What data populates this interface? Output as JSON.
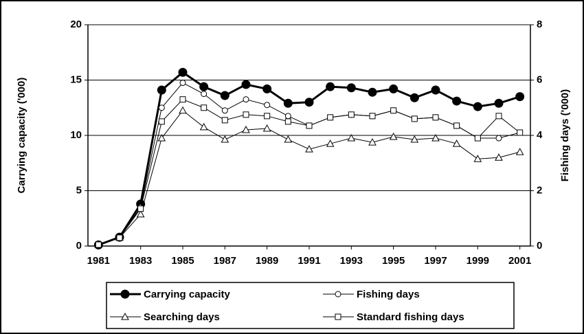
{
  "chart_data": {
    "type": "line",
    "y_label": "Carrying capacity ('000)",
    "y2_label": "Fishing days ('000)",
    "x": [
      1981,
      1982,
      1983,
      1984,
      1985,
      1986,
      1987,
      1988,
      1989,
      1990,
      1991,
      1992,
      1993,
      1994,
      1995,
      1996,
      1997,
      1998,
      1999,
      2000,
      2001
    ],
    "xlim": [
      1980.5,
      2001.5
    ],
    "xticks": [
      1981,
      1983,
      1985,
      1987,
      1989,
      1991,
      1993,
      1995,
      1997,
      1999,
      2001
    ],
    "ylim": [
      0,
      20
    ],
    "yticks": [
      0,
      5,
      10,
      15,
      20
    ],
    "y2lim": [
      0,
      8
    ],
    "y2ticks": [
      0,
      2,
      4,
      6,
      8
    ],
    "grid": true,
    "legend": "bottom",
    "series": [
      {
        "name": "Carrying capacity",
        "color": "#000000",
        "marker": "circle-filled",
        "line_width": 3,
        "values": [
          0.1,
          0.8,
          3.8,
          14.1,
          15.7,
          14.4,
          13.6,
          14.6,
          14.2,
          12.9,
          13.0,
          14.4,
          14.3,
          13.9,
          14.2,
          13.4,
          14.1,
          13.1,
          12.6,
          12.9,
          13.5
        ]
      },
      {
        "name": "Fishing days",
        "color": "#000000",
        "marker": "circle",
        "line_width": 1,
        "axis": "y2",
        "values": [
          0.05,
          0.3,
          1.4,
          5.0,
          5.9,
          5.5,
          4.9,
          5.3,
          5.1,
          4.7,
          4.35,
          4.65,
          4.75,
          4.7,
          4.9,
          4.6,
          4.65,
          4.35,
          3.9,
          3.9,
          4.1
        ]
      },
      {
        "name": "Searching days",
        "color": "#000000",
        "marker": "triangle",
        "line_width": 1,
        "axis": "y2",
        "values": [
          0.05,
          0.3,
          1.15,
          3.9,
          4.9,
          4.3,
          3.85,
          4.2,
          4.25,
          3.85,
          3.5,
          3.7,
          3.9,
          3.75,
          3.95,
          3.85,
          3.9,
          3.7,
          3.15,
          3.2,
          3.4
        ]
      },
      {
        "name": "Standard fishing days",
        "color": "#000000",
        "marker": "square",
        "line_width": 1,
        "axis": "y2",
        "values": [
          0.05,
          0.3,
          1.35,
          4.5,
          5.3,
          5.0,
          4.55,
          4.75,
          4.7,
          4.5,
          4.35,
          4.65,
          4.75,
          4.7,
          4.9,
          4.6,
          4.65,
          4.35,
          3.9,
          4.7,
          4.1
        ]
      }
    ]
  }
}
